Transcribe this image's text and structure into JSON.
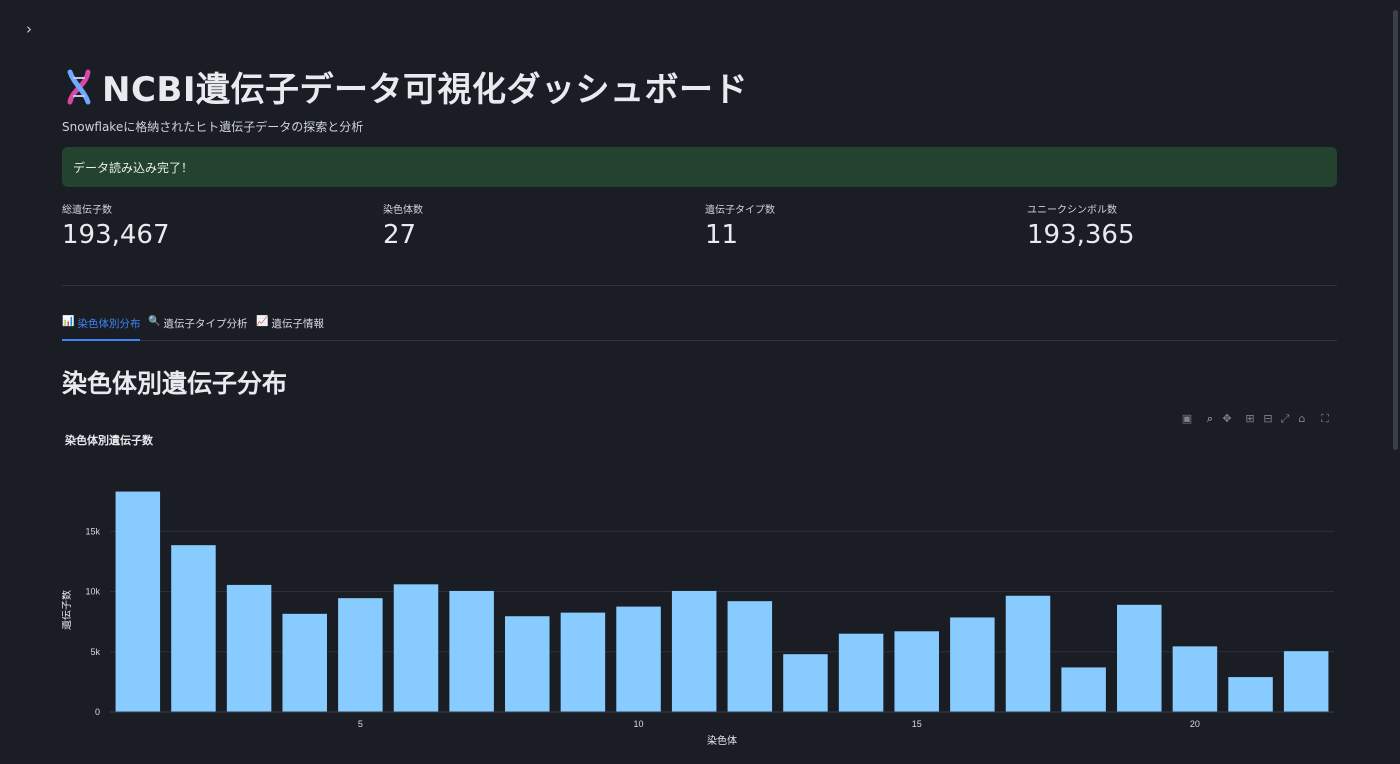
{
  "header": {
    "title": "NCBI遺伝子データ可視化ダッシュボード",
    "subtitle": "Snowflakeに格納されたヒト遺伝子データの探索と分析"
  },
  "alert": {
    "text": "データ読み込み完了！",
    "color": "#24432f"
  },
  "metrics": [
    {
      "label": "総遺伝子数",
      "value": "193,467"
    },
    {
      "label": "染色体数",
      "value": "27"
    },
    {
      "label": "遺伝子タイプ数",
      "value": "11"
    },
    {
      "label": "ユニークシンボル数",
      "value": "193,365"
    }
  ],
  "tabs": [
    {
      "icon": "bar-chart-icon",
      "glyph": "📊",
      "label": "染色体別分布",
      "active": true
    },
    {
      "icon": "magnifier-icon",
      "glyph": "🔍",
      "label": "遺伝子タイプ分析",
      "active": false
    },
    {
      "icon": "trend-chart-icon",
      "glyph": "📈",
      "label": "遺伝子情報",
      "active": false
    }
  ],
  "section": {
    "title": "染色体別遺伝子分布"
  },
  "modebar": [
    "camera-icon",
    "zoom-icon",
    "pan-icon",
    "zoom-in-icon",
    "zoom-out-icon",
    "autoscale-icon",
    "home-icon",
    "fullscreen-icon"
  ],
  "chart_data": {
    "type": "bar",
    "title": "染色体別遺伝子数",
    "xlabel": "染色体",
    "ylabel": "遺伝子数",
    "x": [
      1,
      2,
      3,
      4,
      5,
      6,
      7,
      8,
      9,
      10,
      11,
      12,
      13,
      14,
      15,
      16,
      17,
      18,
      19,
      20,
      21,
      22
    ],
    "values": [
      18300,
      13850,
      10550,
      8150,
      9450,
      10600,
      10050,
      7950,
      8250,
      8750,
      10050,
      9200,
      4800,
      6500,
      6700,
      7850,
      9650,
      3700,
      8900,
      5450,
      2900,
      5050
    ],
    "xticks": [
      5,
      10,
      15,
      20
    ],
    "xtick_labels": [
      "5",
      "10",
      "15",
      "20"
    ],
    "yticks": [
      0,
      5000,
      10000,
      15000
    ],
    "ytick_labels": [
      "0",
      "5k",
      "10k",
      "15k"
    ],
    "xlim": [
      0.5,
      22.5
    ],
    "ylim": [
      0,
      19260
    ],
    "grid": true,
    "bar_color": "#87cbff"
  }
}
